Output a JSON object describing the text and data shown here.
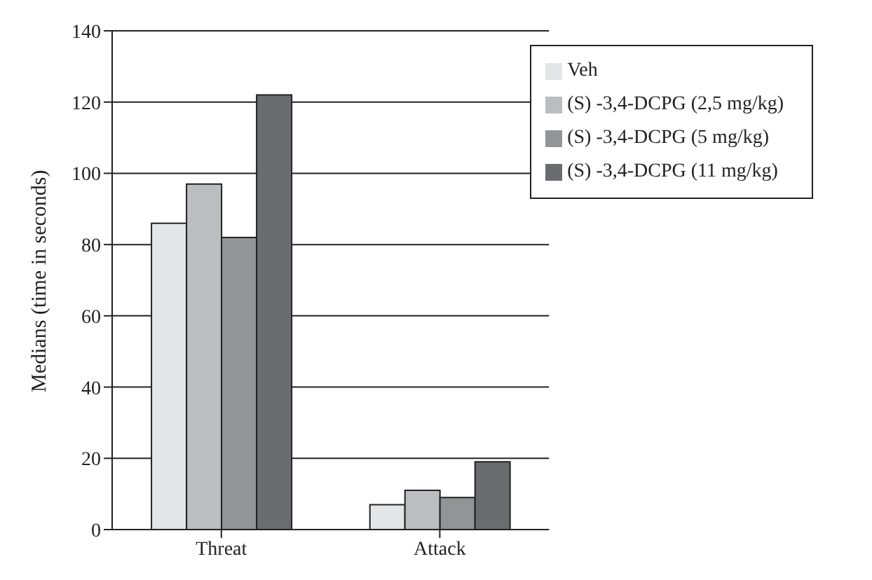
{
  "chart_data": {
    "type": "bar",
    "ylabel": "Medians (time in seconds)",
    "categories": [
      "Threat",
      "Attack"
    ],
    "series": [
      {
        "name": "Veh",
        "color": "#e4e5e7",
        "values": [
          86,
          7
        ]
      },
      {
        "name": "(S) -3,4-DCPG (2,5 mg/kg)",
        "color": "#bcbdc0",
        "values": [
          97,
          11
        ]
      },
      {
        "name": "(S) -3,4-DCPG (5 mg/kg)",
        "color": "#939497",
        "values": [
          82,
          9
        ]
      },
      {
        "name": "(S) -3,4-DCPG (11 mg/kg)",
        "color": "#6b6c70",
        "values": [
          122,
          19
        ]
      }
    ],
    "ylim": [
      0,
      140
    ],
    "yticks": [
      0,
      20,
      40,
      60,
      80,
      100,
      120,
      140
    ],
    "grid": "y",
    "legend": "top right"
  }
}
